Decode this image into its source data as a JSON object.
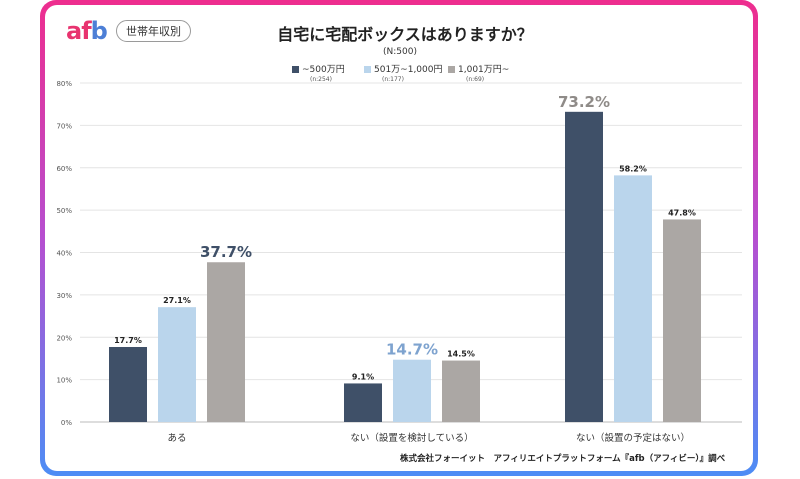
{
  "header": {
    "logo_a": "af",
    "logo_b": "b",
    "pill": "世帯年収別",
    "title": "自宅に宅配ボックスはありますか？",
    "subtitle": "(N:500)"
  },
  "legend": [
    {
      "label": "~500万円",
      "n": "(n:254)",
      "color": "#3f5068"
    },
    {
      "label": "501万~1,000円",
      "n": "(n:177)",
      "color": "#bad5ec"
    },
    {
      "label": "1,001万円~",
      "n": "(n:69)",
      "color": "#aba7a4"
    }
  ],
  "source": "株式会社フォーイット　アフィリエイトプラットフォーム『afb（アフィビー）』調べ",
  "chart_data": {
    "type": "bar",
    "title": "自宅に宅配ボックスはありますか？",
    "categories": [
      "ある",
      "ない（設置を検討している）",
      "ない（設置の予定はない）"
    ],
    "series": [
      {
        "name": "~500万円",
        "values": [
          17.7,
          9.1,
          73.2
        ],
        "color": "#3f5068"
      },
      {
        "name": "501万~1,000円",
        "values": [
          27.1,
          14.7,
          58.2
        ],
        "color": "#bad5ec"
      },
      {
        "name": "1,001万円~",
        "values": [
          37.7,
          14.5,
          47.8
        ],
        "color": "#aba7a4"
      }
    ],
    "highlight": [
      2,
      1,
      0
    ],
    "highlight_colors": [
      "#3f5068",
      "#7ea3cf",
      "#8f8b88"
    ],
    "ylim": [
      0,
      80
    ],
    "yticks": [
      "0%",
      "10%",
      "20%",
      "30%",
      "40%",
      "50%",
      "60%",
      "70%",
      "80%"
    ],
    "grid": true,
    "legend_position": "top"
  }
}
